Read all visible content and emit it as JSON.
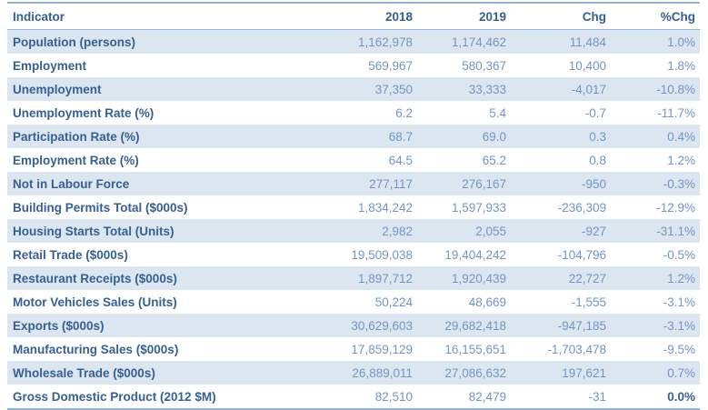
{
  "chart_data": {
    "type": "table",
    "columns": [
      "Indicator",
      "2018",
      "2019",
      "Chg",
      "%Chg"
    ],
    "rows": [
      {
        "indicator": "Population (persons)",
        "y2018": "1,162,978",
        "y2019": "1,174,462",
        "chg": "11,484",
        "pct": "1.0%"
      },
      {
        "indicator": "Employment",
        "y2018": "569,967",
        "y2019": "580,367",
        "chg": "10,400",
        "pct": "1.8%"
      },
      {
        "indicator": "Unemployment",
        "y2018": "37,350",
        "y2019": "33,333",
        "chg": "-4,017",
        "pct": "-10.8%"
      },
      {
        "indicator": "Unemployment Rate (%)",
        "y2018": "6.2",
        "y2019": "5.4",
        "chg": "-0.7",
        "pct": "-11.7%"
      },
      {
        "indicator": "Participation Rate (%)",
        "y2018": "68.7",
        "y2019": "69.0",
        "chg": "0.3",
        "pct": "0.4%"
      },
      {
        "indicator": "Employment Rate (%)",
        "y2018": "64.5",
        "y2019": "65.2",
        "chg": "0.8",
        "pct": "1.2%"
      },
      {
        "indicator": "Not in Labour Force",
        "y2018": "277,117",
        "y2019": "276,167",
        "chg": "-950",
        "pct": "-0.3%"
      },
      {
        "indicator": "Building Permits Total ($000s)",
        "y2018": "1,834,242",
        "y2019": "1,597,933",
        "chg": "-236,309",
        "pct": "-12.9%"
      },
      {
        "indicator": "Housing Starts Total (Units)",
        "y2018": "2,982",
        "y2019": "2,055",
        "chg": "-927",
        "pct": "-31.1%"
      },
      {
        "indicator": "Retail Trade ($000s)",
        "y2018": "19,509,038",
        "y2019": "19,404,242",
        "chg": "-104,796",
        "pct": "-0.5%"
      },
      {
        "indicator": "Restaurant Receipts ($000s)",
        "y2018": "1,897,712",
        "y2019": "1,920,439",
        "chg": "22,727",
        "pct": "1.2%"
      },
      {
        "indicator": "Motor Vehicles Sales (Units)",
        "y2018": "50,224",
        "y2019": "48,669",
        "chg": "-1,555",
        "pct": "-3.1%"
      },
      {
        "indicator": "Exports ($000s)",
        "y2018": "30,629,603",
        "y2019": "29,682,418",
        "chg": "-947,185",
        "pct": "-3.1%"
      },
      {
        "indicator": "Manufacturing Sales ($000s)",
        "y2018": "17,859,129",
        "y2019": "16,155,651",
        "chg": "-1,703,478",
        "pct": "-9.5%"
      },
      {
        "indicator": "Wholesale Trade ($000s)",
        "y2018": "26,889,011",
        "y2019": "27,086,632",
        "chg": "197,621",
        "pct": "0.7%"
      },
      {
        "indicator": "Gross Domestic Product (2012 $M)",
        "y2018": "82,510",
        "y2019": "82,479",
        "chg": "-31",
        "pct": "0.0%",
        "pct_strong": true
      }
    ],
    "layout": {
      "banded_rows": true,
      "numeric_alignment": "right",
      "indicator_alignment": "left"
    }
  },
  "colors": {
    "label_text": "#376092",
    "value_text": "#7495C3",
    "band": "#DCE6F1",
    "rule": "#95B3D7",
    "background": "#FFFFFF"
  }
}
